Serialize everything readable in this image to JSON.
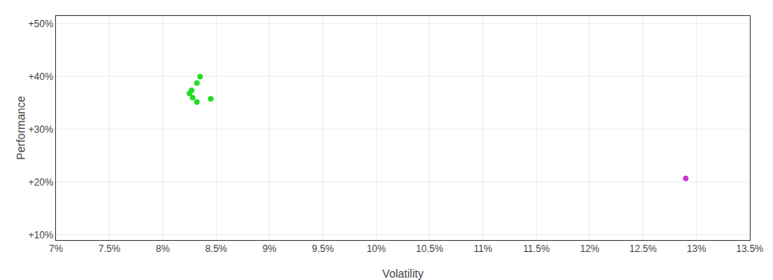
{
  "chart_data": {
    "type": "scatter",
    "xlabel": "Volatility",
    "ylabel": "Performance",
    "xlim": [
      0.07,
      0.135
    ],
    "ylim": [
      0.09,
      0.515
    ],
    "xticks": [
      {
        "value": 0.07,
        "label": "7%"
      },
      {
        "value": 0.075,
        "label": "7.5%"
      },
      {
        "value": 0.08,
        "label": "8%"
      },
      {
        "value": 0.085,
        "label": "8.5%"
      },
      {
        "value": 0.09,
        "label": "9%"
      },
      {
        "value": 0.095,
        "label": "9.5%"
      },
      {
        "value": 0.1,
        "label": "10%"
      },
      {
        "value": 0.105,
        "label": "10.5%"
      },
      {
        "value": 0.11,
        "label": "11%"
      },
      {
        "value": 0.115,
        "label": "11.5%"
      },
      {
        "value": 0.12,
        "label": "12%"
      },
      {
        "value": 0.125,
        "label": "12.5%"
      },
      {
        "value": 0.13,
        "label": "13%"
      },
      {
        "value": 0.135,
        "label": "13.5%"
      }
    ],
    "yticks": [
      {
        "value": 0.1,
        "label": "+10%"
      },
      {
        "value": 0.2,
        "label": "+20%"
      },
      {
        "value": 0.3,
        "label": "+30%"
      },
      {
        "value": 0.4,
        "label": "+40%"
      },
      {
        "value": 0.5,
        "label": "+50%"
      }
    ],
    "grid": true,
    "series": [
      {
        "color": "#22dd22",
        "x": [
          0.0835,
          0.0832,
          0.0827,
          0.0825,
          0.0828,
          0.0845,
          0.0832
        ],
        "values": [
          0.4,
          0.388,
          0.374,
          0.368,
          0.36,
          0.358,
          0.352
        ]
      },
      {
        "color": "#cc33cc",
        "x": [
          0.129
        ],
        "values": [
          0.207
        ]
      }
    ]
  }
}
